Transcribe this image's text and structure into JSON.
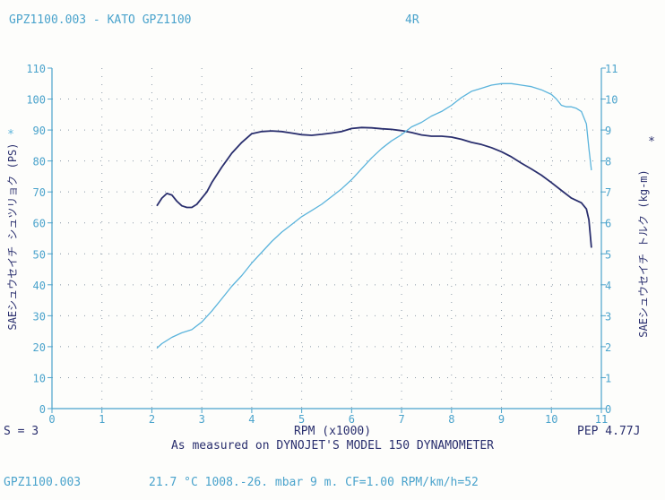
{
  "header": {
    "left": "GPZ1100.003 - KATO GPZ1100",
    "right": "4R"
  },
  "run_info": {
    "smoothing": "S = 3",
    "pep": "PEP 4.77J"
  },
  "caption": "As measured on DYNOJET'S MODEL 150 DYNAMOMETER",
  "footer": {
    "file": "GPZ1100.003",
    "conditions": "21.7 °C   1008.-26. mbar  9 m.   CF=1.00   RPM/km/h=52"
  },
  "colors": {
    "power": "#2a2f6e",
    "torque": "#5bb4dc",
    "axis": "#4aa3cc",
    "grid": "#8c9aa8"
  },
  "chart_data": {
    "type": "line",
    "xlabel": "RPM (x1000)",
    "ylabel_left": "SAEシュウセイチ シュツリョク (PS)",
    "ylabel_right": "SAEシュウセイチ トルク (kg-m)",
    "legend_marker": "*",
    "xlim": [
      0,
      11
    ],
    "ylim_left": [
      0,
      110
    ],
    "ylim_right": [
      0,
      11
    ],
    "xticks": [
      "0",
      "1",
      "2",
      "3",
      "4",
      "5",
      "6",
      "7",
      "8",
      "9",
      "10",
      "11"
    ],
    "yticks_left": [
      "0",
      "10",
      "20",
      "30",
      "40",
      "50",
      "60",
      "70",
      "80",
      "90",
      "100",
      "110"
    ],
    "yticks_right": [
      "0",
      "1",
      "2",
      "3",
      "4",
      "5",
      "6",
      "7",
      "8",
      "9",
      "10",
      "11"
    ],
    "grid": true,
    "series": [
      {
        "axis": "left",
        "x": [
          2.1,
          2.2,
          2.3,
          2.4,
          2.5,
          2.6,
          2.7,
          2.8,
          2.9,
          3.0,
          3.1,
          3.2,
          3.4,
          3.6,
          3.8,
          4.0,
          4.2,
          4.4,
          4.6,
          4.8,
          5.0,
          5.2,
          5.4,
          5.6,
          5.8,
          6.0,
          6.2,
          6.4,
          6.6,
          6.8,
          7.0,
          7.2,
          7.4,
          7.6,
          7.8,
          8.0,
          8.2,
          8.4,
          8.6,
          8.8,
          9.0,
          9.2,
          9.4,
          9.6,
          9.8,
          10.0,
          10.2,
          10.4,
          10.6,
          10.7,
          10.75,
          10.8
        ],
        "values": [
          65.5,
          68,
          69.5,
          69,
          67,
          65.5,
          65,
          65,
          66,
          68,
          70,
          73,
          78,
          82.5,
          86,
          88.8,
          89.5,
          89.7,
          89.5,
          89,
          88.5,
          88.3,
          88.6,
          89,
          89.5,
          90.5,
          90.8,
          90.7,
          90.4,
          90.2,
          89.8,
          89.2,
          88.4,
          88,
          88,
          87.7,
          87,
          86,
          85.3,
          84.3,
          83,
          81.3,
          79.3,
          77.4,
          75.4,
          73,
          70.5,
          68,
          66.5,
          64.5,
          61,
          52
        ]
      },
      {
        "axis": "right",
        "x": [
          2.1,
          2.2,
          2.4,
          2.6,
          2.8,
          3.0,
          3.2,
          3.4,
          3.6,
          3.8,
          4.0,
          4.2,
          4.4,
          4.6,
          4.8,
          5.0,
          5.2,
          5.4,
          5.6,
          5.8,
          6.0,
          6.2,
          6.4,
          6.6,
          6.8,
          7.0,
          7.2,
          7.4,
          7.6,
          7.8,
          8.0,
          8.2,
          8.4,
          8.6,
          8.8,
          9.0,
          9.2,
          9.4,
          9.6,
          9.8,
          10.0,
          10.1,
          10.2,
          10.3,
          10.4,
          10.5,
          10.6,
          10.7,
          10.75,
          10.8
        ],
        "values": [
          1.95,
          2.1,
          2.3,
          2.45,
          2.55,
          2.8,
          3.15,
          3.55,
          3.95,
          4.3,
          4.7,
          5.05,
          5.4,
          5.7,
          5.95,
          6.2,
          6.4,
          6.6,
          6.85,
          7.1,
          7.4,
          7.75,
          8.1,
          8.4,
          8.65,
          8.85,
          9.1,
          9.25,
          9.45,
          9.6,
          9.8,
          10.05,
          10.25,
          10.35,
          10.45,
          10.5,
          10.5,
          10.45,
          10.4,
          10.3,
          10.15,
          10.0,
          9.8,
          9.75,
          9.75,
          9.7,
          9.6,
          9.2,
          8.4,
          7.7
        ]
      }
    ]
  }
}
